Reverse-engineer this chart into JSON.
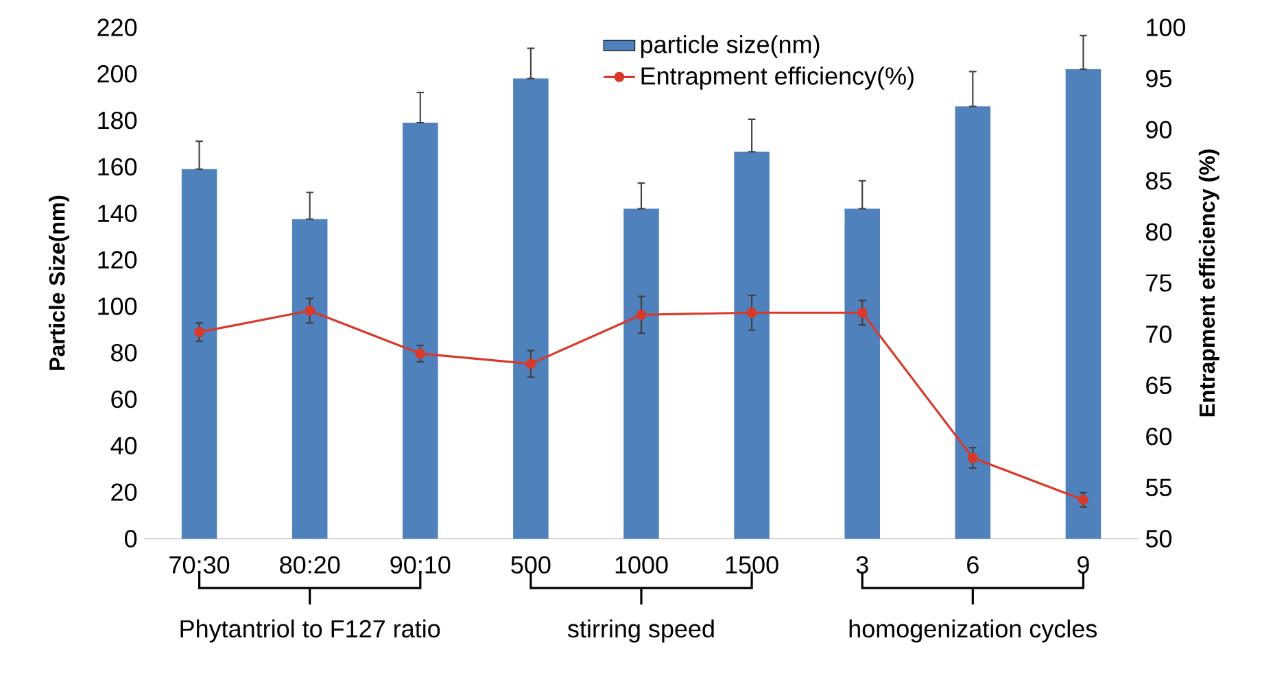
{
  "chart_data": {
    "type": "bar",
    "categories": [
      "70:30",
      "80:20",
      "90:10",
      "500",
      "1000",
      "1500",
      "3",
      "6",
      "9"
    ],
    "series": [
      {
        "name": "particle size(nm)",
        "color": "#4f81bd",
        "values": [
          159,
          137.5,
          179,
          198,
          142,
          166.5,
          142,
          186,
          202
        ],
        "errors": [
          [
            159,
            171
          ],
          [
            137.5,
            149
          ],
          [
            179,
            192
          ],
          [
            198,
            211
          ],
          [
            142,
            153
          ],
          [
            166.5,
            180.5
          ],
          [
            142,
            154
          ],
          [
            186,
            201
          ],
          [
            202,
            216.5
          ]
        ]
      },
      {
        "name": "Entrapment efficiency(%)",
        "type": "line",
        "axis": "y2",
        "color": "#d9392b",
        "marker": "circle",
        "values": [
          70.2,
          72.3,
          68.1,
          67.1,
          71.9,
          72.1,
          72.1,
          57.9,
          53.8
        ],
        "errors": [
          0.9,
          1.2,
          0.8,
          1.3,
          1.8,
          1.7,
          1.2,
          1.0,
          0.7
        ]
      }
    ],
    "ylabel": "Particle Size(nm)",
    "y2label": "Entrapment efficiency (%)",
    "ylim": [
      0,
      220
    ],
    "yticks": [
      0,
      20,
      40,
      60,
      80,
      100,
      120,
      140,
      160,
      180,
      200,
      220
    ],
    "y2lim": [
      50,
      100
    ],
    "y2ticks": [
      50,
      55,
      60,
      65,
      70,
      75,
      80,
      85,
      90,
      95,
      100
    ],
    "legend": "top",
    "annotations": [
      "Phytantriol to F127 ratio",
      "stirring speed",
      "homogenization cycles"
    ]
  }
}
